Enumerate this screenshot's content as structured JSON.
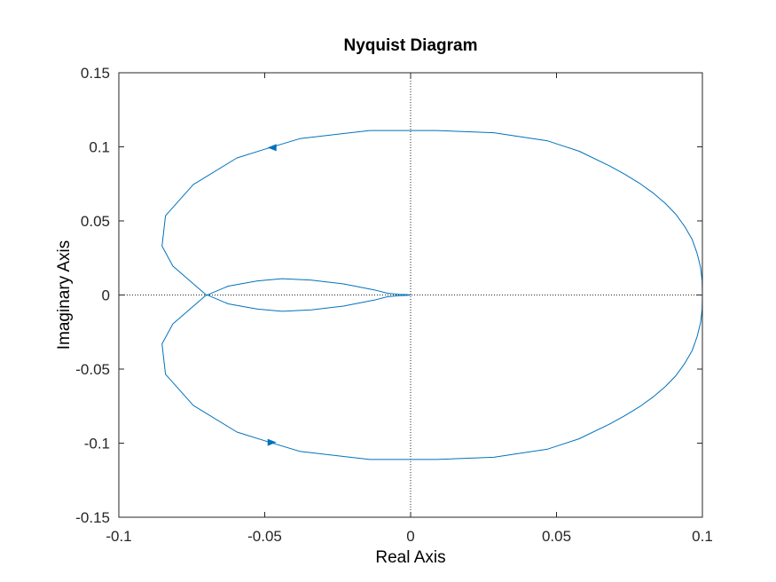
{
  "chart_data": {
    "type": "line",
    "title": "Nyquist Diagram",
    "xlabel": "Real Axis",
    "ylabel": "Imaginary Axis",
    "xlim": [
      -0.1,
      0.1
    ],
    "ylim": [
      -0.15,
      0.15
    ],
    "xticks": [
      -0.1,
      -0.05,
      0,
      0.05,
      0.1
    ],
    "xtick_labels": [
      "-0.1",
      "-0.05",
      "0",
      "0.05",
      "0.1"
    ],
    "yticks": [
      -0.15,
      -0.1,
      -0.05,
      0,
      0.05,
      0.1,
      0.15
    ],
    "ytick_labels": [
      "-0.15",
      "-0.1",
      "-0.05",
      "0",
      "0.05",
      "0.1",
      "0.15"
    ],
    "grid": false,
    "reference_lines": [
      {
        "axis": "x",
        "value": 0,
        "style": "dotted"
      },
      {
        "axis": "y",
        "value": 0,
        "style": "dotted"
      }
    ],
    "series": [
      {
        "name": "positive-frequency",
        "color": "#0072BD",
        "x": [
          0.1,
          0.0999,
          0.0994,
          0.0982,
          0.0965,
          0.094,
          0.0909,
          0.0872,
          0.083,
          0.0784,
          0.0734,
          0.0683,
          0.0578,
          0.047,
          0.0285,
          0.009,
          0.0,
          -0.014,
          -0.038,
          -0.049,
          -0.0595,
          -0.0745,
          -0.084,
          -0.0852,
          -0.0815,
          -0.0703,
          -0.0625,
          -0.0525,
          -0.044,
          -0.034,
          -0.023,
          -0.0125,
          -0.008,
          -0.004,
          -0.0015,
          0.0
        ],
        "y": [
          0.0,
          -0.0095,
          -0.0185,
          -0.028,
          -0.0375,
          -0.046,
          -0.0545,
          -0.062,
          -0.069,
          -0.0755,
          -0.0815,
          -0.087,
          -0.097,
          -0.104,
          -0.1095,
          -0.111,
          -0.111,
          -0.111,
          -0.1055,
          -0.099,
          -0.0925,
          -0.0745,
          -0.0535,
          -0.033,
          -0.0195,
          -0.0005,
          0.006,
          0.0095,
          0.011,
          0.01,
          0.0075,
          0.0035,
          0.0012,
          0.0005,
          0.0003,
          0.0
        ]
      },
      {
        "name": "negative-frequency",
        "color": "#0072BD",
        "x": [
          0.1,
          0.0999,
          0.0994,
          0.0982,
          0.0965,
          0.094,
          0.0909,
          0.0872,
          0.083,
          0.0784,
          0.0734,
          0.0683,
          0.0578,
          0.047,
          0.0285,
          0.009,
          0.0,
          -0.014,
          -0.038,
          -0.049,
          -0.0595,
          -0.0745,
          -0.084,
          -0.0852,
          -0.0815,
          -0.0703,
          -0.0625,
          -0.0525,
          -0.044,
          -0.034,
          -0.023,
          -0.0125,
          -0.008,
          -0.004,
          -0.0015,
          0.0
        ],
        "y": [
          0.0,
          0.0095,
          0.0185,
          0.028,
          0.0375,
          0.046,
          0.0545,
          0.062,
          0.069,
          0.0755,
          0.0815,
          0.087,
          0.097,
          0.104,
          0.1095,
          0.111,
          0.111,
          0.111,
          0.1055,
          0.099,
          0.0925,
          0.0745,
          0.0535,
          0.033,
          0.0195,
          0.0005,
          -0.006,
          -0.0095,
          -0.011,
          -0.01,
          -0.0075,
          -0.0035,
          -0.0012,
          -0.0005,
          -0.0003,
          0.0
        ]
      }
    ],
    "arrows": [
      {
        "x": -0.0475,
        "y": 0.0995,
        "direction": "left"
      },
      {
        "x": -0.0475,
        "y": -0.0995,
        "direction": "right"
      }
    ]
  }
}
